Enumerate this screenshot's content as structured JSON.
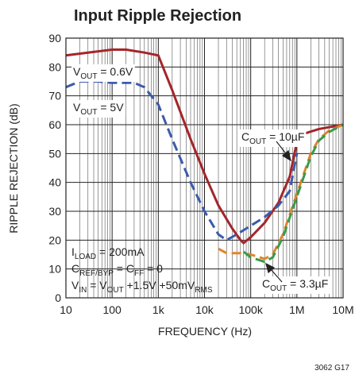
{
  "chart_data": {
    "type": "line",
    "title": "Input Ripple Rejection",
    "xlabel": "FREQUENCY (Hz)",
    "ylabel": "RIPPLE REJECTION (dB)",
    "footnote": "3062 G17",
    "xlog": true,
    "grid": true,
    "minor_grid": true,
    "xlim": [
      10,
      10000000
    ],
    "ylim": [
      0,
      90
    ],
    "xticks": [
      10,
      100,
      {
        "value": 1000,
        "label": "1k"
      },
      {
        "value": 10000,
        "label": "10k"
      },
      {
        "value": 100000,
        "label": "100k"
      },
      {
        "value": 1000000,
        "label": "1M"
      },
      {
        "value": 10000000,
        "label": "10M"
      }
    ],
    "yticks": [
      0,
      10,
      20,
      30,
      40,
      50,
      60,
      70,
      80,
      90
    ],
    "series": [
      {
        "color": "#a3262a",
        "dash": false,
        "x": [
          10,
          30,
          100,
          200,
          500,
          1000,
          2000,
          5000,
          10000,
          20000,
          40000,
          60000,
          70000,
          100000,
          200000,
          400000,
          700000,
          1000000,
          1500000,
          3000000,
          10000000
        ],
        "values": [
          84,
          85,
          86,
          86,
          85,
          84,
          72,
          55,
          43,
          32,
          24,
          20,
          19,
          21,
          26,
          33,
          42,
          54,
          57,
          58.5,
          60
        ]
      },
      {
        "color": "#3b5bab",
        "dash": true,
        "x": [
          10,
          20,
          50,
          100,
          300,
          500,
          1000,
          2000,
          5000,
          10000,
          20000,
          30000,
          50000,
          100000,
          200000,
          400000,
          700000,
          1000000
        ],
        "values": [
          73,
          75,
          75,
          74.5,
          74.5,
          73,
          67,
          55,
          40,
          30,
          22,
          20,
          22,
          25,
          28,
          32,
          37,
          50
        ]
      },
      {
        "color": "#e0852a",
        "dash": true,
        "x": [
          20000,
          30000,
          60000,
          100000,
          200000,
          300000,
          500000,
          1000000,
          2000000,
          3000000,
          5000000,
          10000000
        ],
        "values": [
          17,
          15.5,
          15.5,
          15,
          13.5,
          15,
          22,
          36,
          50,
          55,
          58,
          60
        ]
      },
      {
        "color": "#3a9a4a",
        "dash": true,
        "x": [
          70000,
          100000,
          200000,
          300000,
          500000,
          1000000,
          2000000,
          3000000,
          5000000,
          10000000
        ],
        "values": [
          16,
          14,
          12.5,
          14,
          21,
          35,
          49,
          54.5,
          57.5,
          60
        ]
      }
    ],
    "annotations": [
      [
        "V",
        "OUT",
        " = 0.6V"
      ],
      [
        "V",
        "OUT",
        " = 5V"
      ],
      [
        "C",
        "OUT",
        " = 10µF"
      ],
      [
        "C",
        "OUT",
        " = 3.3µF"
      ],
      [
        "I",
        "LOAD",
        " = 200mA"
      ],
      [
        "C",
        "REF/BYP",
        " = C",
        "FF",
        " = 0"
      ],
      [
        "V",
        "IN",
        " = V",
        "OUT",
        " +1.5V +50mV",
        "RMS"
      ]
    ]
  }
}
